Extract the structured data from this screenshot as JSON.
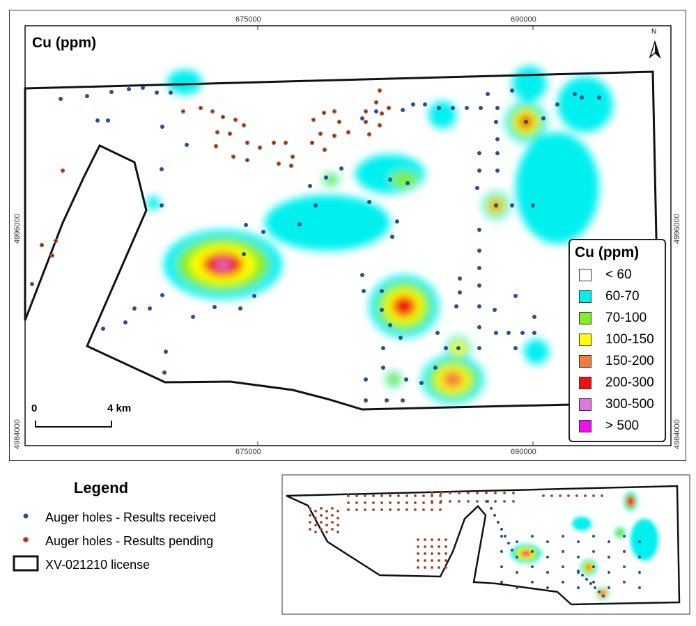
{
  "map": {
    "title": "Cu (ppm)",
    "x_ticks": [
      "675000",
      "690000"
    ],
    "y_ticks": [
      "4996000",
      "4984000"
    ],
    "north_label": "N",
    "scale": {
      "start": "0",
      "end": "4 km"
    }
  },
  "cu_legend": {
    "title": "Cu (ppm)",
    "items": [
      {
        "label": "< 60",
        "color": "#ffffff"
      },
      {
        "label": "60-70",
        "color": "#00f0f0"
      },
      {
        "label": "70-100",
        "color": "#80ee20"
      },
      {
        "label": "100-150",
        "color": "#ffff00"
      },
      {
        "label": "150-200",
        "color": "#f57a40"
      },
      {
        "label": "200-300",
        "color": "#ee1111"
      },
      {
        "label": "300-500",
        "color": "#dd77dd"
      },
      {
        "label": ">  500",
        "color": "#ee11ee"
      }
    ]
  },
  "legend": {
    "title": "Legend",
    "items": [
      {
        "label": "Auger holes - Results received",
        "symbol": "blue-dot",
        "color": "#2a4f8f"
      },
      {
        "label": "Auger holes - Results pending",
        "symbol": "orange-dot",
        "color": "#c0603a"
      },
      {
        "label": "XV-021210 license",
        "symbol": "polygon-outline"
      }
    ]
  }
}
